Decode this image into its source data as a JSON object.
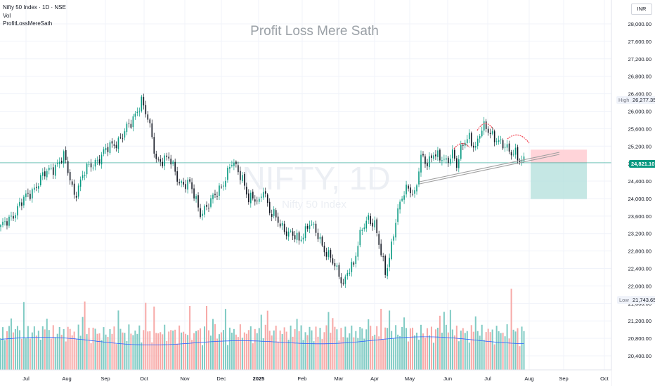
{
  "legend": {
    "symbol_line": "Nifty 50 Index · 1D · NSE",
    "vol_label": "Vol",
    "author": "ProfitLossMereSath"
  },
  "watermark": {
    "author": "Profit Loss Mere Sath",
    "symbol": "NIFTY, 1D",
    "description": "Nifty 50 Index"
  },
  "currency": "INR",
  "price_tags": {
    "high_label": "High",
    "high_value": "26,277.35",
    "last_value": "24,821.10",
    "low_label": "Low",
    "low_value": "21,743.65"
  },
  "colors": {
    "up": "#089981",
    "down": "#131722",
    "volume_up": "#80cbc4",
    "volume_down": "#f7a9a7",
    "volume_ma": "#2962ff",
    "arc": "#f23645",
    "target_zone": "#b2dfdb",
    "stop_zone": "#ffcdd2",
    "trendline": "#a0a0a0",
    "last_price_line": "#089981"
  },
  "chart_data": {
    "type": "candlestick",
    "title": "Nifty 50 Index · 1D · NSE",
    "ylim": [
      20100,
      28300
    ],
    "y_ticks": [
      "20,400.00",
      "20,800.00",
      "21,200.00",
      "21,600.00",
      "22,000.00",
      "22,400.00",
      "22,800.00",
      "23,200.00",
      "23,600.00",
      "24,000.00",
      "24,400.00",
      "24,800.00",
      "25,200.00",
      "25,600.00",
      "26,000.00",
      "26,400.00",
      "26,800.00",
      "27,200.00",
      "27,600.00",
      "28,000.00"
    ],
    "x_ticks": [
      "Jul",
      "Aug",
      "Sep",
      "Oct",
      "Nov",
      "Dec",
      "2025",
      "Feb",
      "Mar",
      "Apr",
      "May",
      "Jun",
      "Jul",
      "Aug",
      "Sep",
      "Oct"
    ],
    "price_path": [
      [
        0,
        23300
      ],
      [
        10,
        23900
      ],
      [
        20,
        24500
      ],
      [
        30,
        24950
      ],
      [
        35,
        24100
      ],
      [
        40,
        24600
      ],
      [
        48,
        25000
      ],
      [
        55,
        25300
      ],
      [
        62,
        25700
      ],
      [
        67,
        26277
      ],
      [
        70,
        25800
      ],
      [
        74,
        24900
      ],
      [
        80,
        24900
      ],
      [
        85,
        24400
      ],
      [
        90,
        24300
      ],
      [
        95,
        23700
      ],
      [
        100,
        23900
      ],
      [
        105,
        24300
      ],
      [
        110,
        24800
      ],
      [
        115,
        24500
      ],
      [
        118,
        24000
      ],
      [
        123,
        23900
      ],
      [
        125,
        24300
      ],
      [
        128,
        23700
      ],
      [
        133,
        23400
      ],
      [
        138,
        23200
      ],
      [
        142,
        23000
      ],
      [
        147,
        23500
      ],
      [
        150,
        23200
      ],
      [
        153,
        22900
      ],
      [
        157,
        22700
      ],
      [
        160,
        22300
      ],
      [
        163,
        22000
      ],
      [
        165,
        22400
      ],
      [
        168,
        22500
      ],
      [
        172,
        23300
      ],
      [
        175,
        23600
      ],
      [
        178,
        23400
      ],
      [
        181,
        22700
      ],
      [
        183,
        22300
      ],
      [
        185,
        22700
      ],
      [
        188,
        23500
      ],
      [
        191,
        24000
      ],
      [
        194,
        24300
      ],
      [
        197,
        24100
      ],
      [
        200,
        24900
      ],
      [
        203,
        24800
      ],
      [
        206,
        25100
      ],
      [
        209,
        24900
      ],
      [
        212,
        24800
      ],
      [
        215,
        25100
      ],
      [
        217,
        24800
      ],
      [
        220,
        25200
      ],
      [
        223,
        25400
      ],
      [
        226,
        25200
      ],
      [
        228,
        25500
      ],
      [
        230,
        25600
      ],
      [
        233,
        25500
      ],
      [
        236,
        25400
      ],
      [
        239,
        25200
      ],
      [
        242,
        25050
      ],
      [
        245,
        25100
      ],
      [
        247,
        24900
      ],
      [
        249,
        24821
      ]
    ],
    "volume_range": [
      0,
      6.0
    ]
  }
}
